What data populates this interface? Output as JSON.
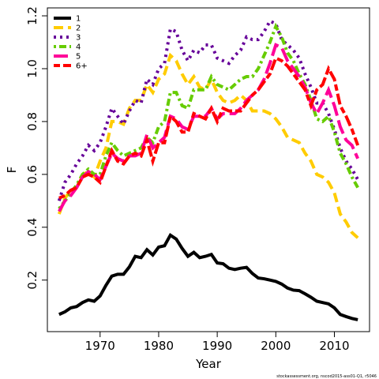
{
  "chart_data": {
    "type": "line",
    "xlabel": "Year",
    "ylabel": "F",
    "footnote": "stockassessment.org, nscod2015-ass01-Q1, r5046",
    "x": [
      1963,
      1964,
      1965,
      1966,
      1967,
      1968,
      1969,
      1970,
      1971,
      1972,
      1973,
      1974,
      1975,
      1976,
      1977,
      1978,
      1979,
      1980,
      1981,
      1982,
      1983,
      1984,
      1985,
      1986,
      1987,
      1988,
      1989,
      1990,
      1991,
      1992,
      1993,
      1994,
      1995,
      1996,
      1997,
      1998,
      1999,
      2000,
      2001,
      2002,
      2003,
      2004,
      2005,
      2006,
      2007,
      2008,
      2009,
      2010,
      2011,
      2012,
      2013,
      2014
    ],
    "series": [
      {
        "name": "1",
        "color": "#000000",
        "values": [
          0.07,
          0.08,
          0.095,
          0.1,
          0.115,
          0.125,
          0.12,
          0.14,
          0.18,
          0.215,
          0.222,
          0.222,
          0.25,
          0.29,
          0.285,
          0.315,
          0.295,
          0.325,
          0.33,
          0.37,
          0.355,
          0.32,
          0.29,
          0.305,
          0.285,
          0.29,
          0.297,
          0.265,
          0.262,
          0.245,
          0.24,
          0.245,
          0.248,
          0.225,
          0.208,
          0.205,
          0.2,
          0.195,
          0.185,
          0.17,
          0.162,
          0.16,
          0.148,
          0.135,
          0.12,
          0.115,
          0.11,
          0.095,
          0.07,
          0.062,
          0.055,
          0.05
        ]
      },
      {
        "name": "2",
        "color": "#ffcc00",
        "values": [
          0.45,
          0.51,
          0.54,
          0.55,
          0.6,
          0.61,
          0.59,
          0.65,
          0.7,
          0.8,
          0.8,
          0.79,
          0.85,
          0.88,
          0.88,
          0.94,
          0.91,
          0.96,
          0.98,
          1.05,
          1.03,
          0.98,
          0.94,
          0.97,
          0.93,
          0.92,
          0.96,
          0.91,
          0.88,
          0.87,
          0.88,
          0.9,
          0.88,
          0.84,
          0.84,
          0.84,
          0.83,
          0.81,
          0.78,
          0.74,
          0.73,
          0.72,
          0.68,
          0.65,
          0.6,
          0.59,
          0.57,
          0.53,
          0.45,
          0.42,
          0.38,
          0.36
        ]
      },
      {
        "name": "3",
        "color": "#660099",
        "values": [
          0.5,
          0.57,
          0.6,
          0.64,
          0.67,
          0.71,
          0.69,
          0.72,
          0.78,
          0.85,
          0.82,
          0.79,
          0.84,
          0.88,
          0.87,
          0.96,
          0.94,
          1.0,
          1.02,
          1.15,
          1.14,
          1.07,
          1.03,
          1.07,
          1.06,
          1.09,
          1.09,
          1.04,
          1.03,
          1.02,
          1.05,
          1.07,
          1.12,
          1.11,
          1.11,
          1.14,
          1.18,
          1.17,
          1.11,
          1.09,
          1.07,
          1.04,
          0.98,
          0.93,
          0.87,
          0.87,
          0.83,
          0.77,
          0.7,
          0.65,
          0.62,
          0.58
        ]
      },
      {
        "name": "4",
        "color": "#66cc00",
        "values": [
          0.47,
          0.5,
          0.53,
          0.56,
          0.6,
          0.62,
          0.6,
          0.6,
          0.67,
          0.72,
          0.69,
          0.67,
          0.68,
          0.69,
          0.7,
          0.74,
          0.72,
          0.78,
          0.8,
          0.91,
          0.91,
          0.86,
          0.85,
          0.92,
          0.92,
          0.92,
          0.97,
          0.94,
          0.93,
          0.92,
          0.94,
          0.96,
          0.97,
          0.97,
          1.0,
          1.05,
          1.1,
          1.16,
          1.12,
          1.06,
          1.03,
          0.98,
          0.94,
          0.88,
          0.81,
          0.8,
          0.82,
          0.76,
          0.68,
          0.64,
          0.59,
          0.55
        ]
      },
      {
        "name": "5",
        "color": "#ff0099",
        "values": [
          0.46,
          0.5,
          0.52,
          0.55,
          0.59,
          0.61,
          0.6,
          0.58,
          0.63,
          0.68,
          0.66,
          0.65,
          0.67,
          0.67,
          0.68,
          0.75,
          0.7,
          0.72,
          0.74,
          0.82,
          0.81,
          0.78,
          0.77,
          0.82,
          0.82,
          0.82,
          0.85,
          0.81,
          0.83,
          0.83,
          0.83,
          0.85,
          0.88,
          0.9,
          0.92,
          0.96,
          1.02,
          1.09,
          1.08,
          1.03,
          1.0,
          0.97,
          0.93,
          0.87,
          0.83,
          0.87,
          0.92,
          0.86,
          0.78,
          0.73,
          0.71,
          0.66
        ]
      },
      {
        "name": "6+",
        "color": "#ff0000",
        "values": [
          0.51,
          0.52,
          0.54,
          0.55,
          0.59,
          0.6,
          0.59,
          0.57,
          0.63,
          0.69,
          0.65,
          0.64,
          0.67,
          0.68,
          0.67,
          0.73,
          0.65,
          0.72,
          0.72,
          0.82,
          0.8,
          0.76,
          0.76,
          0.83,
          0.82,
          0.81,
          0.85,
          0.8,
          0.85,
          0.84,
          0.84,
          0.84,
          0.87,
          0.9,
          0.92,
          0.95,
          0.98,
          1.04,
          1.03,
          1.01,
          0.98,
          0.95,
          0.92,
          0.86,
          0.92,
          0.94,
          1.0,
          0.96,
          0.86,
          0.82,
          0.77,
          0.71
        ]
      }
    ],
    "xlim": [
      1961,
      2016
    ],
    "xticks": [
      1970,
      1980,
      1990,
      2000,
      2010
    ],
    "ylim": [
      0.005,
      1.23
    ],
    "yticks": [
      0.2,
      0.4,
      0.6,
      0.8,
      {
        "value": 1,
        "label": "1.0"
      },
      1.2
    ],
    "legend": "top-left"
  }
}
